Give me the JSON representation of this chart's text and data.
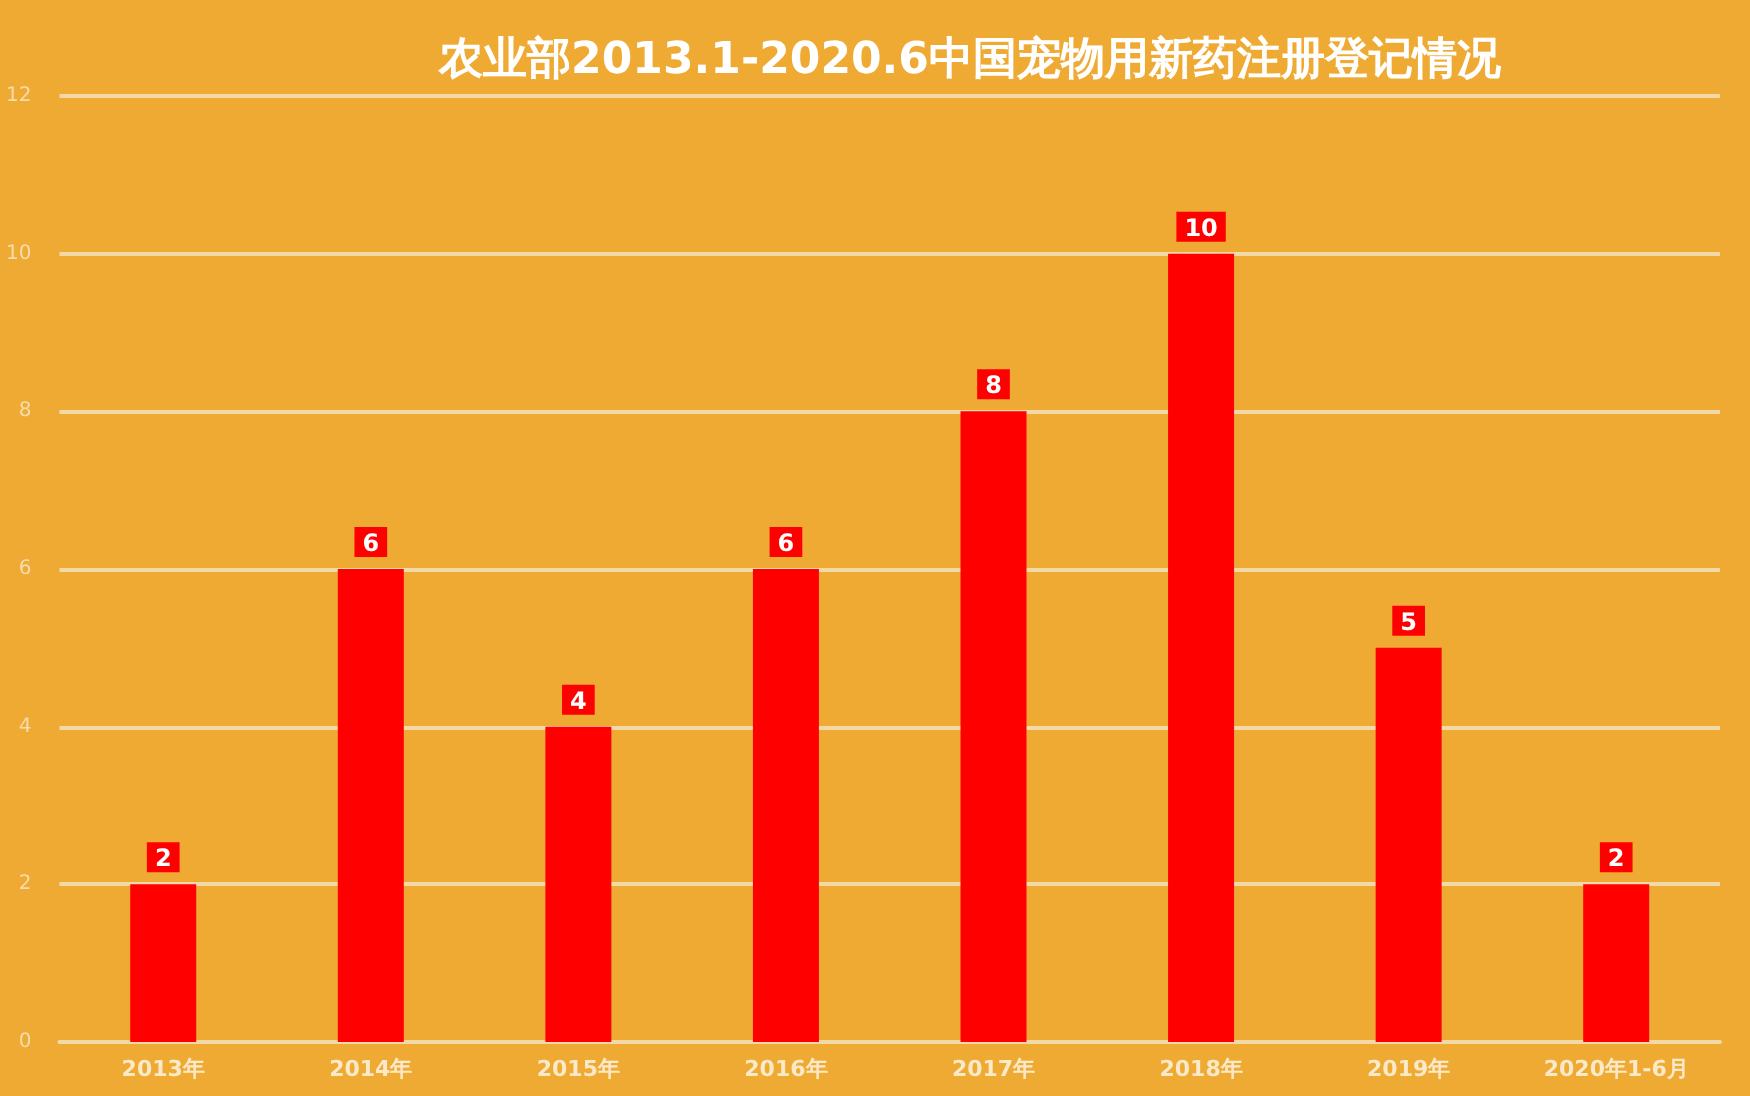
{
  "chart_data": {
    "type": "bar",
    "title": "农业部2013.1-2020.6中国宠物用新药注册登记情况",
    "categories": [
      "2013年",
      "2014年",
      "2015年",
      "2016年",
      "2017年",
      "2018年",
      "2019年",
      "2020年1-6月"
    ],
    "values": [
      2,
      6,
      4,
      6,
      8,
      10,
      5,
      2
    ],
    "color": "#ff0000",
    "ylim": [
      0,
      12
    ],
    "yticks": [
      0,
      2,
      4,
      6,
      8,
      10,
      12
    ],
    "grid": "y",
    "data_labels": true
  }
}
